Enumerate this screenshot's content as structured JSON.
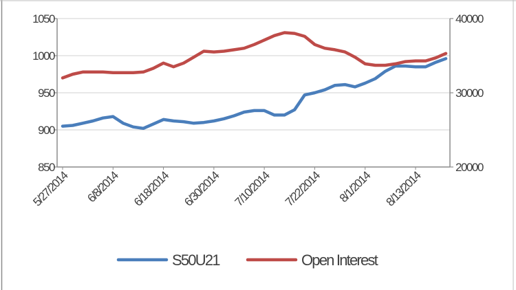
{
  "chart_data": {
    "type": "line",
    "title": "",
    "xlabel": "",
    "ylabel": "",
    "ylabel_right": "",
    "x_tick_labels": [
      "5/27/2014",
      "6/8/2014",
      "6/18/2014",
      "6/30/2014",
      "7/10/2014",
      "7/22/2014",
      "8/1/2014",
      "8/13/2014"
    ],
    "y_left": {
      "lim": [
        850,
        1050
      ],
      "ticks": [
        850,
        900,
        950,
        1000,
        1050
      ]
    },
    "y_right": {
      "lim": [
        20000,
        40000
      ],
      "ticks": [
        20000,
        30000,
        40000
      ]
    },
    "grid": "horizontal",
    "legend_position": "bottom",
    "series": [
      {
        "name": "S50U21",
        "axis": "left",
        "color": "#4a7ebb",
        "values": [
          905,
          906,
          909,
          912,
          916,
          918,
          909,
          904,
          902,
          908,
          914,
          912,
          911,
          909,
          910,
          912,
          915,
          919,
          924,
          926,
          926,
          920,
          920,
          927,
          947,
          950,
          954,
          960,
          961,
          958,
          963,
          969,
          979,
          986,
          986,
          985,
          985,
          991,
          996
        ]
      },
      {
        "name": "Open Interest",
        "axis": "right",
        "color": "#be4b48",
        "values": [
          32000,
          32500,
          32800,
          32800,
          32800,
          32700,
          32700,
          32700,
          32800,
          33300,
          34000,
          33500,
          34000,
          34800,
          35600,
          35500,
          35600,
          35800,
          36000,
          36500,
          37100,
          37700,
          38100,
          38000,
          37600,
          36500,
          36000,
          35800,
          35500,
          34800,
          33900,
          33700,
          33700,
          33900,
          34200,
          34300,
          34300,
          34700,
          35300
        ]
      }
    ]
  }
}
